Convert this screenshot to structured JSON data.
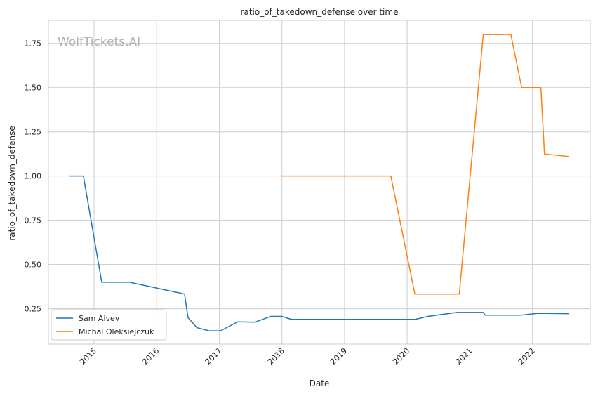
{
  "chart_data": {
    "type": "line",
    "title": "ratio_of_takedown_defense over time",
    "xlabel": "Date",
    "ylabel": "ratio_of_takedown_defense",
    "watermark": "WolfTickets.AI",
    "xlim": [
      "2014-04-10",
      "2022-12-04"
    ],
    "ylim": [
      0.05,
      1.88
    ],
    "x_ticks": [
      "2015-01-01",
      "2016-01-01",
      "2017-01-01",
      "2018-01-01",
      "2019-01-01",
      "2020-01-01",
      "2021-01-01",
      "2022-01-01"
    ],
    "x_tick_labels": [
      "2015",
      "2016",
      "2017",
      "2018",
      "2019",
      "2020",
      "2021",
      "2022"
    ],
    "y_ticks": [
      0.25,
      0.5,
      0.75,
      1.0,
      1.25,
      1.5,
      1.75
    ],
    "y_tick_labels": [
      "0.25",
      "0.50",
      "0.75",
      "1.00",
      "1.25",
      "1.50",
      "1.75"
    ],
    "grid": true,
    "legend_position": "lower-left",
    "series": [
      {
        "name": "Sam Alvey",
        "color": "#1f77b4",
        "points": [
          [
            "2014-08-09",
            1.0
          ],
          [
            "2014-10-31",
            1.0
          ],
          [
            "2015-02-15",
            0.4
          ],
          [
            "2015-07-27",
            0.4
          ],
          [
            "2016-06-12",
            0.333
          ],
          [
            "2016-07-02",
            0.2
          ],
          [
            "2016-08-23",
            0.143
          ],
          [
            "2016-11-02",
            0.125
          ],
          [
            "2017-01-07",
            0.125
          ],
          [
            "2017-04-18",
            0.176
          ],
          [
            "2017-07-27",
            0.174
          ],
          [
            "2017-10-28",
            0.207
          ],
          [
            "2017-12-31",
            0.207
          ],
          [
            "2018-02-25",
            0.19
          ],
          [
            "2018-08-01",
            0.19
          ],
          [
            "2019-02-01",
            0.19
          ],
          [
            "2019-08-01",
            0.19
          ],
          [
            "2020-02-17",
            0.19
          ],
          [
            "2020-05-02",
            0.207
          ],
          [
            "2020-10-17",
            0.229
          ],
          [
            "2021-03-19",
            0.229
          ],
          [
            "2021-04-01",
            0.214
          ],
          [
            "2021-10-28",
            0.214
          ],
          [
            "2022-01-30",
            0.224
          ],
          [
            "2022-07-30",
            0.222
          ]
        ]
      },
      {
        "name": "Michal Oleksiejczuk",
        "color": "#ff7f0e",
        "points": [
          [
            "2017-12-30",
            1.0
          ],
          [
            "2018-06-01",
            1.0
          ],
          [
            "2019-01-01",
            1.0
          ],
          [
            "2019-09-28",
            1.0
          ],
          [
            "2020-02-15",
            0.333
          ],
          [
            "2020-10-31",
            0.333
          ],
          [
            "2021-03-20",
            1.8
          ],
          [
            "2021-08-28",
            1.8
          ],
          [
            "2021-10-30",
            1.5
          ],
          [
            "2022-02-19",
            1.5
          ],
          [
            "2022-03-12",
            1.125
          ],
          [
            "2022-07-30",
            1.111
          ]
        ]
      }
    ]
  }
}
